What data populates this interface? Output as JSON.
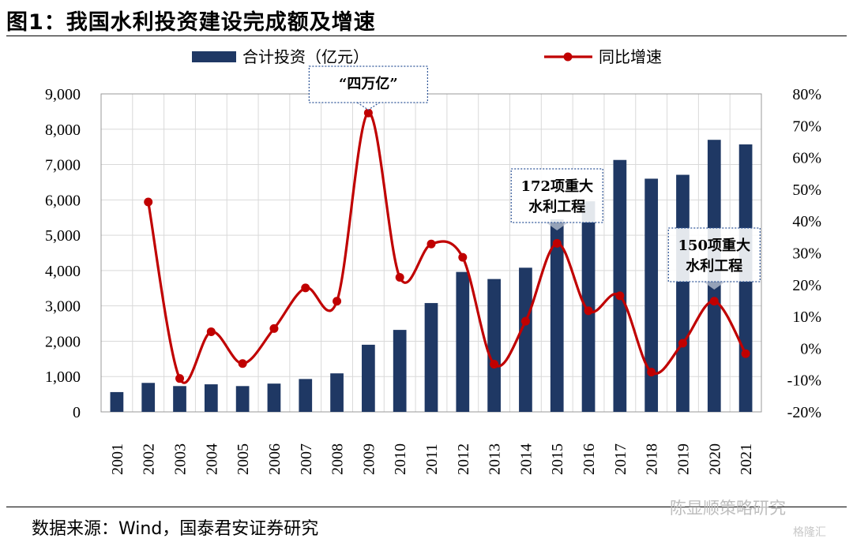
{
  "title": "图1：我国水利投资建设完成额及增速",
  "source": "数据来源：Wind，国泰君安证券研究",
  "watermark": "陈显顺策略研究",
  "logo": "格隆汇",
  "chart_data": {
    "type": "bar+line",
    "categories": [
      "2001",
      "2002",
      "2003",
      "2004",
      "2005",
      "2006",
      "2007",
      "2008",
      "2009",
      "2010",
      "2011",
      "2012",
      "2013",
      "2014",
      "2015",
      "2016",
      "2017",
      "2018",
      "2019",
      "2020",
      "2021"
    ],
    "series": [
      {
        "name": "合计投资（亿元）",
        "type": "bar",
        "axis": "left",
        "color": "#1f3864",
        "values": [
          560,
          820,
          730,
          780,
          730,
          800,
          930,
          1090,
          1900,
          2320,
          3080,
          3960,
          3760,
          4080,
          5450,
          5960,
          7130,
          6600,
          6710,
          7700,
          7570
        ]
      },
      {
        "name": "同比增速",
        "type": "line",
        "axis": "right",
        "color": "#c00000",
        "values": [
          null,
          46.0,
          -9.5,
          5.2,
          -4.8,
          6.2,
          19.0,
          14.8,
          74.0,
          22.3,
          32.8,
          28.6,
          -5.0,
          8.5,
          33.0,
          11.8,
          16.5,
          -7.5,
          1.6,
          14.8,
          -1.7
        ]
      }
    ],
    "left_axis": {
      "ylim": [
        0,
        9000
      ],
      "ticks": [
        0,
        1000,
        2000,
        3000,
        4000,
        5000,
        6000,
        7000,
        8000,
        9000
      ],
      "tick_labels": [
        "0",
        "1,000",
        "2,000",
        "3,000",
        "4,000",
        "5,000",
        "6,000",
        "7,000",
        "8,000",
        "9,000"
      ]
    },
    "right_axis": {
      "ylim": [
        -20,
        80
      ],
      "ticks": [
        -20,
        -10,
        0,
        10,
        20,
        30,
        40,
        50,
        60,
        70,
        80
      ],
      "tick_labels": [
        "-20%",
        "-10%",
        "0%",
        "10%",
        "20%",
        "30%",
        "40%",
        "50%",
        "60%",
        "70%",
        "80%"
      ]
    },
    "grid": true,
    "legend_position": "top",
    "annotations": [
      {
        "lines": [
          "“四万亿”"
        ],
        "category": "2009"
      },
      {
        "lines": [
          "172项重大",
          "水利工程"
        ],
        "category": "2015"
      },
      {
        "lines": [
          "150项重大",
          "水利工程"
        ],
        "category": "2020"
      }
    ]
  }
}
